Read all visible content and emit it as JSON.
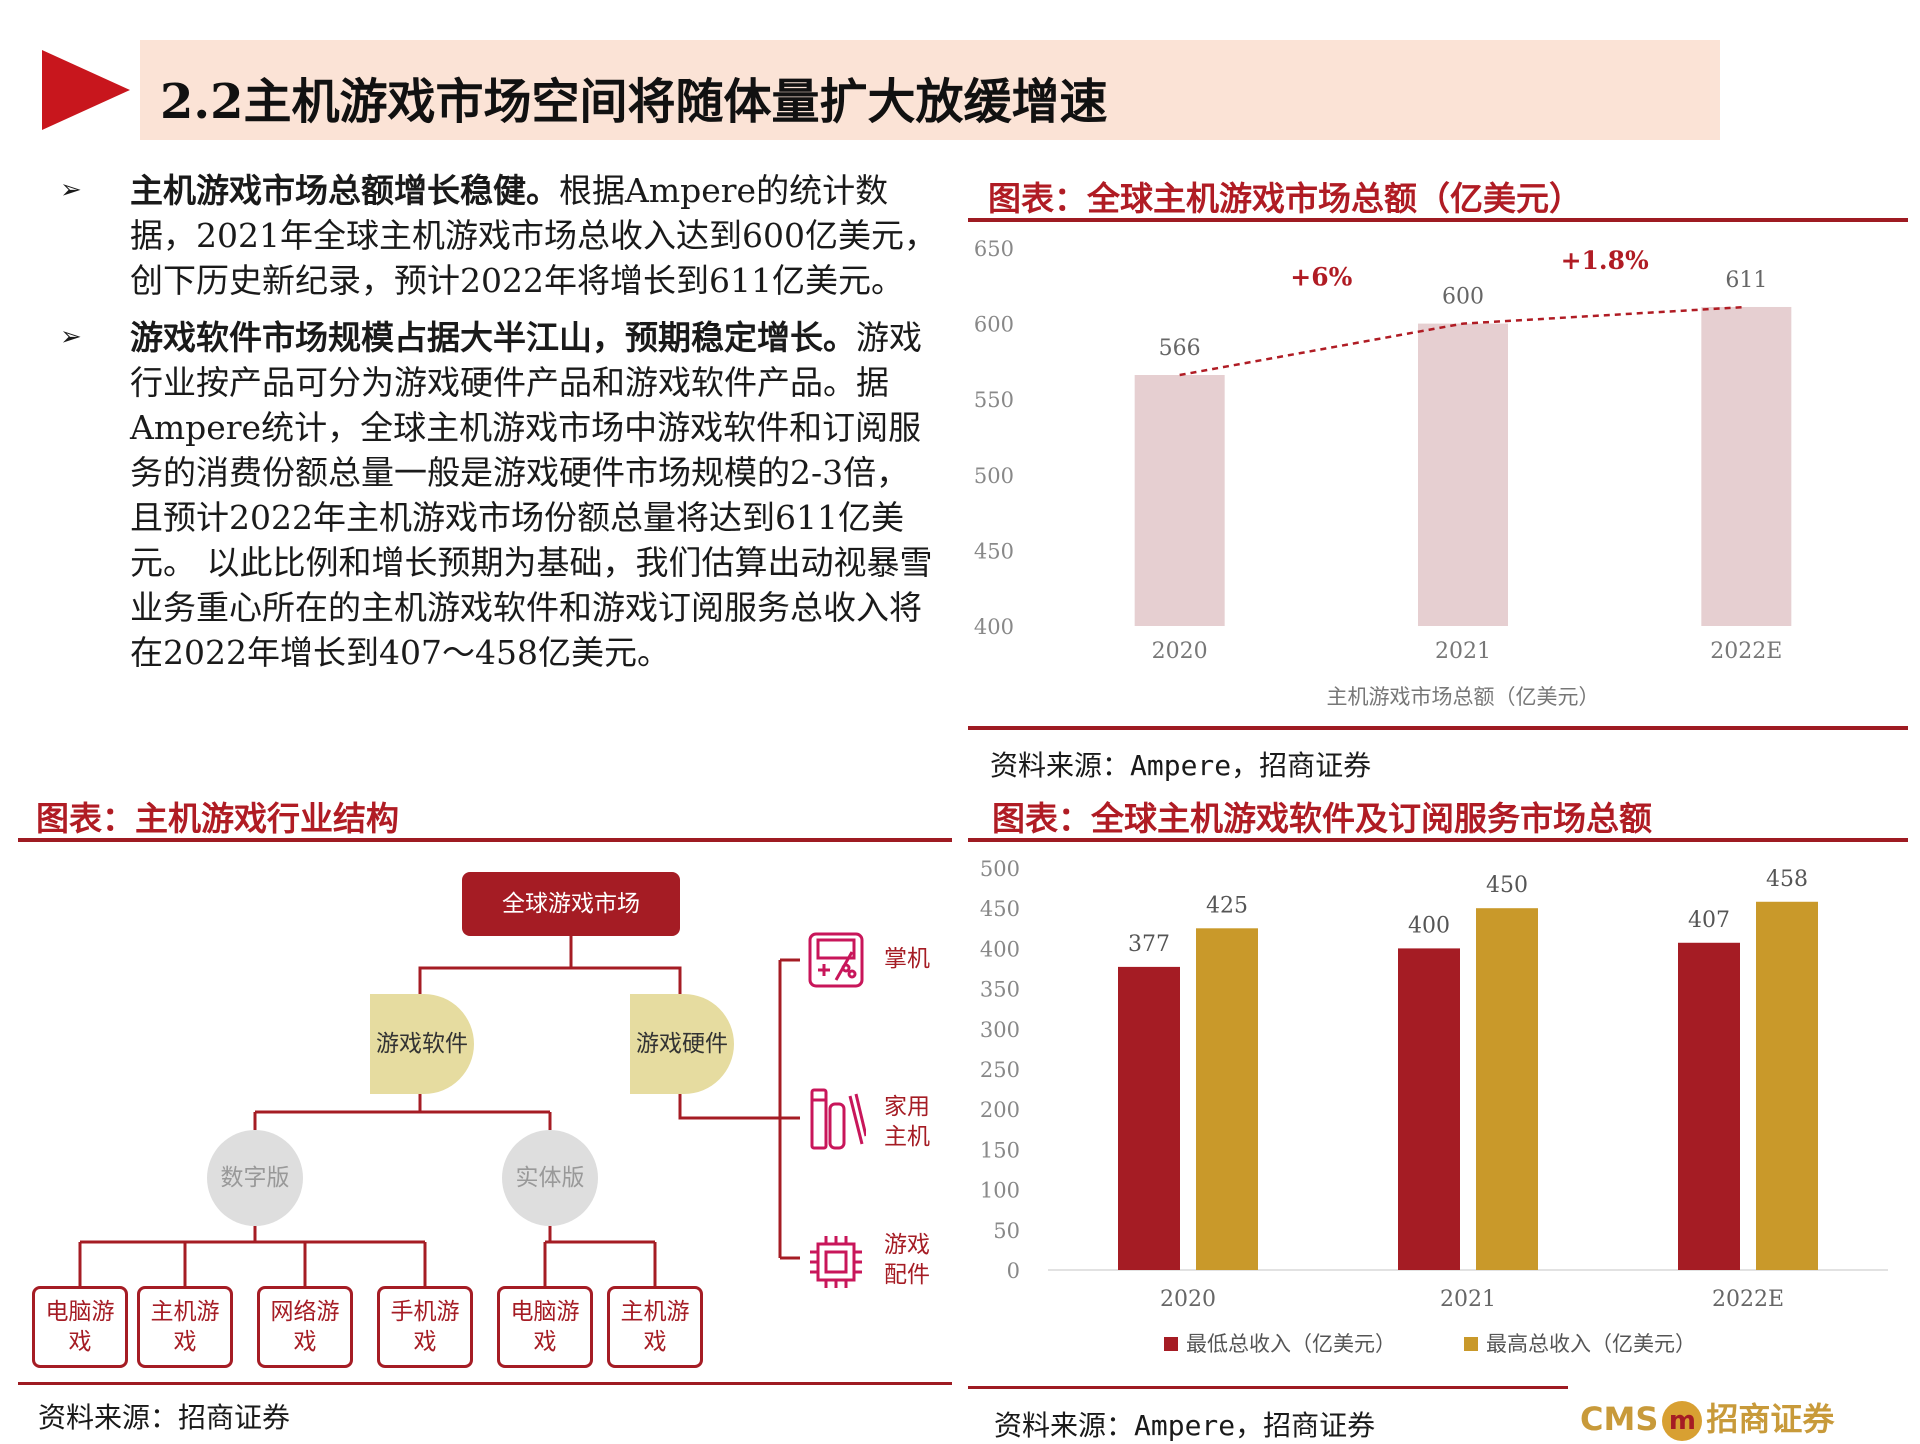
{
  "header": {
    "title": "2.2主机游戏市场空间将随体量扩大放缓增速"
  },
  "bullets": [
    {
      "bold": "主机游戏市场总额增长稳健。",
      "text": "根据Ampere的统计数据，2021年全球主机游戏市场总收入达到600亿美元，创下历史新纪录，预计2022年将增长到611亿美元。"
    },
    {
      "bold": "游戏软件市场规模占据大半江山，预期稳定增长。",
      "text": "游戏行业按产品可分为游戏硬件产品和游戏软件产品。据Ampere统计，全球主机游戏市场中游戏软件和订阅服务的消费份额总量一般是游戏硬件市场规模的2-3倍，且预计2022年主机游戏市场份额总量将达到611亿美元。 以此比例和增长预期为基础，我们估算出动视暴雪业务重心所在的主机游戏软件和游戏订阅服务总收入将在2022年增长到407～458亿美元。"
    }
  ],
  "bullet_mark": "➢",
  "sections": {
    "chart1_title": "图表：全球主机游戏市场总额（亿美元）",
    "chart1_source": "资料来源：Ampere，招商证券",
    "org_title": "图表：主机游戏行业结构",
    "org_source": "资料来源：招商证券",
    "chart2_title": "图表：全球主机游戏软件及订阅服务市场总额",
    "chart2_source": "资料来源：Ampere，招商证券"
  },
  "org": {
    "root": "全球游戏市场",
    "software": "游戏软件",
    "hardware": "游戏硬件",
    "digital": "数字版",
    "physical": "实体版",
    "leaves": [
      "电脑游戏",
      "主机游戏",
      "网络游戏",
      "手机游戏",
      "电脑游戏",
      "主机游戏"
    ],
    "hw_items": [
      "掌机",
      "家用主机",
      "游戏配件"
    ]
  },
  "colors": {
    "accent": "#b01c24",
    "bar_pink": "#e6cfd1",
    "series_red": "#a51c24",
    "series_gold": "#c9992a"
  },
  "logo": {
    "text_left": "CMS",
    "text_right": "招商证券",
    "glyph": "m"
  },
  "chart_data": [
    {
      "type": "bar",
      "categories": [
        "2020",
        "2021",
        "2022E"
      ],
      "values": [
        566,
        600,
        611
      ],
      "data_labels": [
        "566",
        "600",
        "611"
      ],
      "growth_annotations": [
        "+6%",
        "+1.8%"
      ],
      "xlabel": "主机游戏市场总额（亿美元）",
      "ylim": [
        400,
        650
      ],
      "yticks": [
        400,
        450,
        500,
        550,
        600,
        650
      ],
      "trend_line": "dashed",
      "grid": false
    },
    {
      "type": "bar",
      "categories": [
        "2020",
        "2021",
        "2022E"
      ],
      "series": [
        {
          "name": "最低总收入（亿美元）",
          "values": [
            377,
            400,
            407
          ]
        },
        {
          "name": "最高总收入（亿美元）",
          "values": [
            425,
            450,
            458
          ]
        }
      ],
      "ylim": [
        0,
        500
      ],
      "yticks": [
        0,
        50,
        100,
        150,
        200,
        250,
        300,
        350,
        400,
        450,
        500
      ],
      "legend": "bottom",
      "grid": false
    }
  ]
}
